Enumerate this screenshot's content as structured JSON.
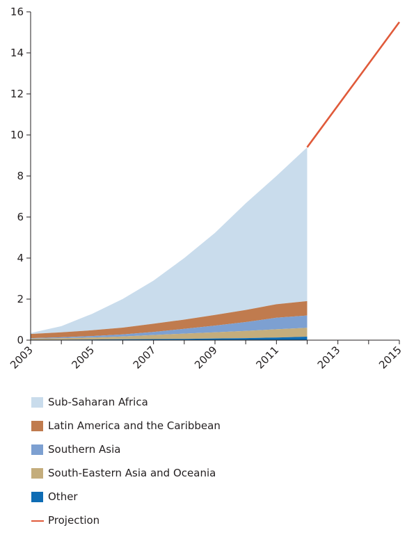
{
  "chart_data": {
    "type": "area",
    "stacked": true,
    "title": "",
    "xlabel": "",
    "ylabel": "",
    "x": [
      2003,
      2004,
      2005,
      2006,
      2007,
      2008,
      2009,
      2010,
      2011,
      2012
    ],
    "xlim": [
      2003,
      2015
    ],
    "ylim": [
      0,
      16
    ],
    "x_ticks": [
      "2003",
      "2005",
      "2007",
      "2009",
      "2011",
      "2013",
      "2015"
    ],
    "y_ticks": [
      "0",
      "2",
      "4",
      "6",
      "8",
      "10",
      "12",
      "14",
      "16"
    ],
    "grid": false,
    "legend_position": "bottom",
    "series": [
      {
        "name": "Other",
        "color": "#0e6cb4",
        "values": [
          0.02,
          0.02,
          0.03,
          0.04,
          0.05,
          0.06,
          0.08,
          0.1,
          0.13,
          0.17
        ]
      },
      {
        "name": "South-Eastern Asia and Oceania",
        "color": "#c4ad7c",
        "values": [
          0.05,
          0.07,
          0.1,
          0.14,
          0.2,
          0.26,
          0.3,
          0.35,
          0.4,
          0.43
        ]
      },
      {
        "name": "Southern Asia",
        "color": "#7da0d1",
        "values": [
          0.03,
          0.05,
          0.07,
          0.1,
          0.15,
          0.23,
          0.33,
          0.43,
          0.56,
          0.6
        ]
      },
      {
        "name": "Latin America and the Caribbean",
        "color": "#c07b4e",
        "values": [
          0.2,
          0.24,
          0.28,
          0.33,
          0.4,
          0.45,
          0.52,
          0.59,
          0.66,
          0.7
        ]
      },
      {
        "name": "Sub-Saharan Africa",
        "color": "#c9dcec",
        "values": [
          0.05,
          0.3,
          0.8,
          1.4,
          2.1,
          3.0,
          4.0,
          5.2,
          6.25,
          7.5
        ]
      }
    ],
    "projection": {
      "name": "Projection",
      "color": "#e05a3a",
      "x": [
        2012,
        2015
      ],
      "values": [
        9.4,
        15.5
      ]
    },
    "legend": [
      {
        "name": "Sub-Saharan Africa",
        "color": "#c9dcec",
        "shape": "box"
      },
      {
        "name": "Latin America and the Caribbean",
        "color": "#c07b4e",
        "shape": "box"
      },
      {
        "name": "Southern Asia",
        "color": "#7da0d1",
        "shape": "box"
      },
      {
        "name": "South-Eastern Asia and Oceania",
        "color": "#c4ad7c",
        "shape": "box"
      },
      {
        "name": "Other",
        "color": "#0e6cb4",
        "shape": "box"
      },
      {
        "name": "Projection",
        "color": "#e05a3a",
        "shape": "line"
      }
    ]
  }
}
